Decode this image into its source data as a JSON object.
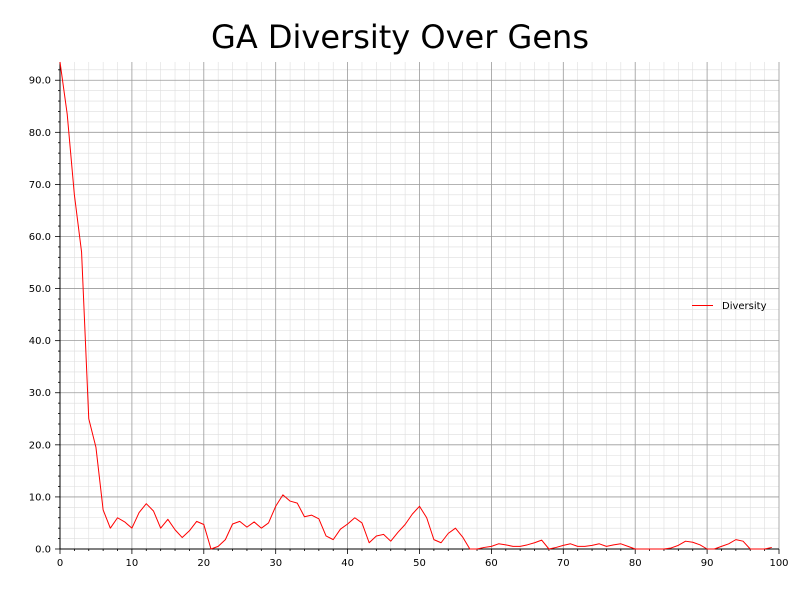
{
  "chart_data": {
    "type": "line",
    "title": "GA Diversity Over Gens",
    "xlabel": "",
    "ylabel": "",
    "xlim": [
      0,
      100
    ],
    "ylim": [
      0,
      93.5
    ],
    "x_ticks": [
      "0",
      "10",
      "20",
      "30",
      "40",
      "50",
      "60",
      "70",
      "80",
      "90",
      "100"
    ],
    "y_ticks": [
      "0.0",
      "10.0",
      "20.0",
      "30.0",
      "40.0",
      "50.0",
      "60.0",
      "70.0",
      "80.0",
      "90.0"
    ],
    "grid": true,
    "legend_position": "right",
    "series": [
      {
        "name": "Diversity",
        "color": "#ff0000",
        "x": [
          0,
          1,
          2,
          3,
          4,
          5,
          6,
          7,
          8,
          9,
          10,
          11,
          12,
          13,
          14,
          15,
          16,
          17,
          18,
          19,
          20,
          21,
          22,
          23,
          24,
          25,
          26,
          27,
          28,
          29,
          30,
          31,
          32,
          33,
          34,
          35,
          36,
          37,
          38,
          39,
          40,
          41,
          42,
          43,
          44,
          45,
          46,
          47,
          48,
          49,
          50,
          51,
          52,
          53,
          54,
          55,
          56,
          57,
          58,
          59,
          60,
          61,
          62,
          63,
          64,
          65,
          66,
          67,
          68,
          69,
          70,
          71,
          72,
          73,
          74,
          75,
          76,
          77,
          78,
          79,
          80,
          81,
          82,
          83,
          84,
          85,
          86,
          87,
          88,
          89,
          90,
          91,
          92,
          93,
          94,
          95,
          96,
          97,
          98,
          99
        ],
        "values": [
          93.5,
          83.5,
          68.0,
          57.0,
          25.0,
          19.5,
          7.5,
          4.0,
          6.0,
          5.2,
          4.0,
          7.0,
          8.7,
          7.3,
          4.0,
          5.7,
          3.7,
          2.2,
          3.5,
          5.3,
          4.7,
          0.0,
          0.5,
          1.8,
          4.8,
          5.3,
          4.2,
          5.2,
          4.0,
          5.0,
          8.2,
          10.4,
          9.2,
          8.8,
          6.2,
          6.5,
          5.8,
          2.5,
          1.8,
          3.8,
          4.8,
          6.0,
          5.0,
          1.2,
          2.5,
          2.8,
          1.5,
          3.2,
          4.7,
          6.7,
          8.2,
          6.0,
          1.8,
          1.2,
          3.0,
          4.0,
          2.3,
          0.0,
          0.0,
          0.3,
          0.5,
          1.0,
          0.8,
          0.5,
          0.5,
          0.8,
          1.2,
          1.7,
          0.0,
          0.3,
          0.7,
          1.0,
          0.5,
          0.5,
          0.7,
          1.0,
          0.5,
          0.8,
          1.0,
          0.5,
          0.0,
          0.0,
          0.0,
          0.0,
          0.0,
          0.2,
          0.7,
          1.5,
          1.3,
          0.8,
          0.0,
          0.0,
          0.5,
          1.0,
          1.8,
          1.5,
          0.0,
          0.0,
          0.0,
          0.3
        ]
      }
    ]
  }
}
